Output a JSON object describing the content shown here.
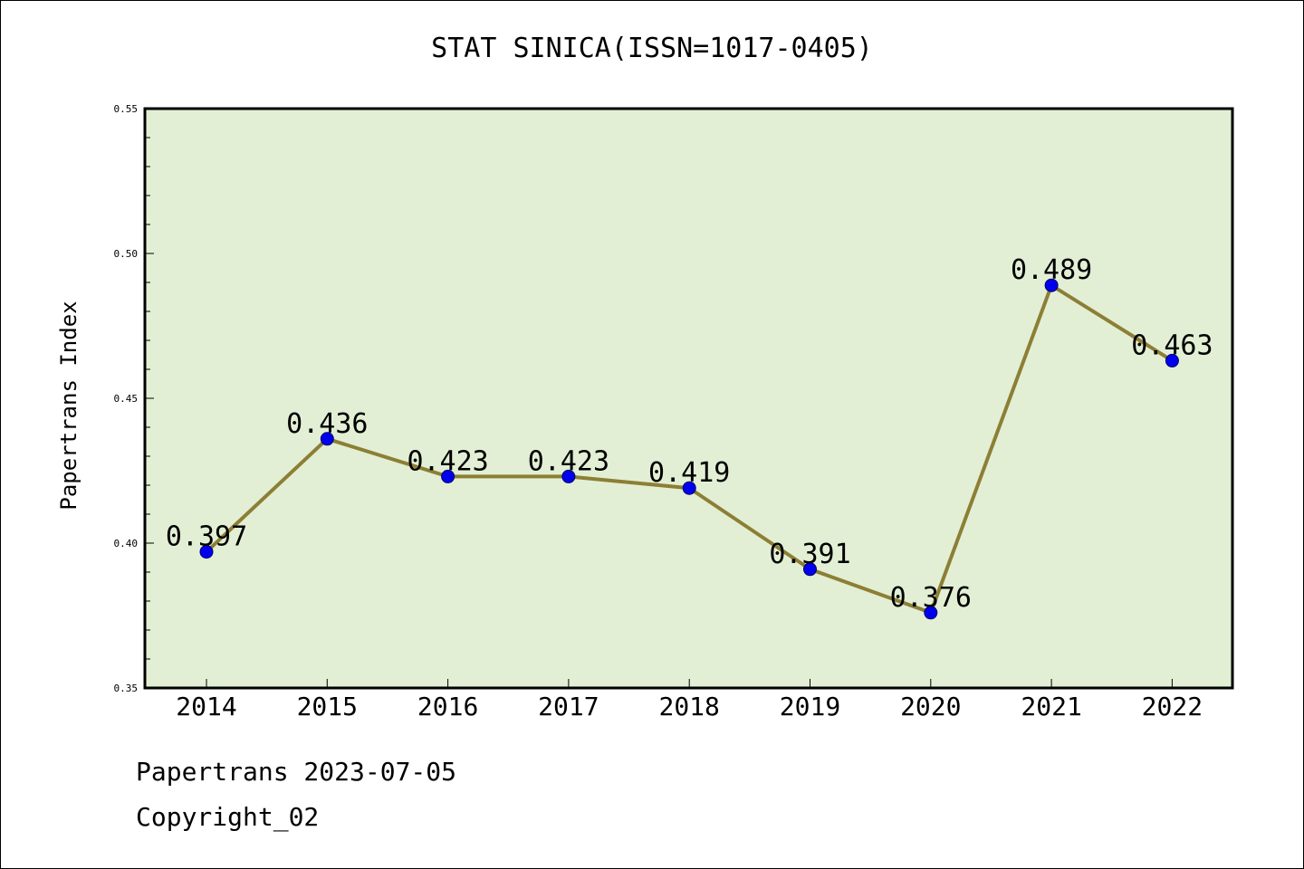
{
  "footer": {
    "line1": "Papertrans 2023-07-05",
    "line2": "Copyright_02"
  },
  "chart_data": {
    "type": "line",
    "title": "STAT SINICA(ISSN=1017-0405)",
    "xlabel": "",
    "ylabel": "Papertrans Index",
    "categories": [
      "2014",
      "2015",
      "2016",
      "2017",
      "2018",
      "2019",
      "2020",
      "2021",
      "2022"
    ],
    "values": [
      0.397,
      0.436,
      0.423,
      0.423,
      0.419,
      0.391,
      0.376,
      0.489,
      0.463
    ],
    "data_labels": [
      "0.397",
      "0.436",
      "0.423",
      "0.423",
      "0.419",
      "0.391",
      "0.376",
      "0.489",
      "0.463"
    ],
    "ylim": [
      0.35,
      0.55
    ],
    "yticks": [
      "0.35",
      "0.40",
      "0.45",
      "0.50",
      "0.55"
    ],
    "grid": false,
    "colors": {
      "plot_background": "#e2efd5",
      "line": "#8c7f35",
      "marker": "#0000ee",
      "marker_edge": "#000066"
    }
  }
}
